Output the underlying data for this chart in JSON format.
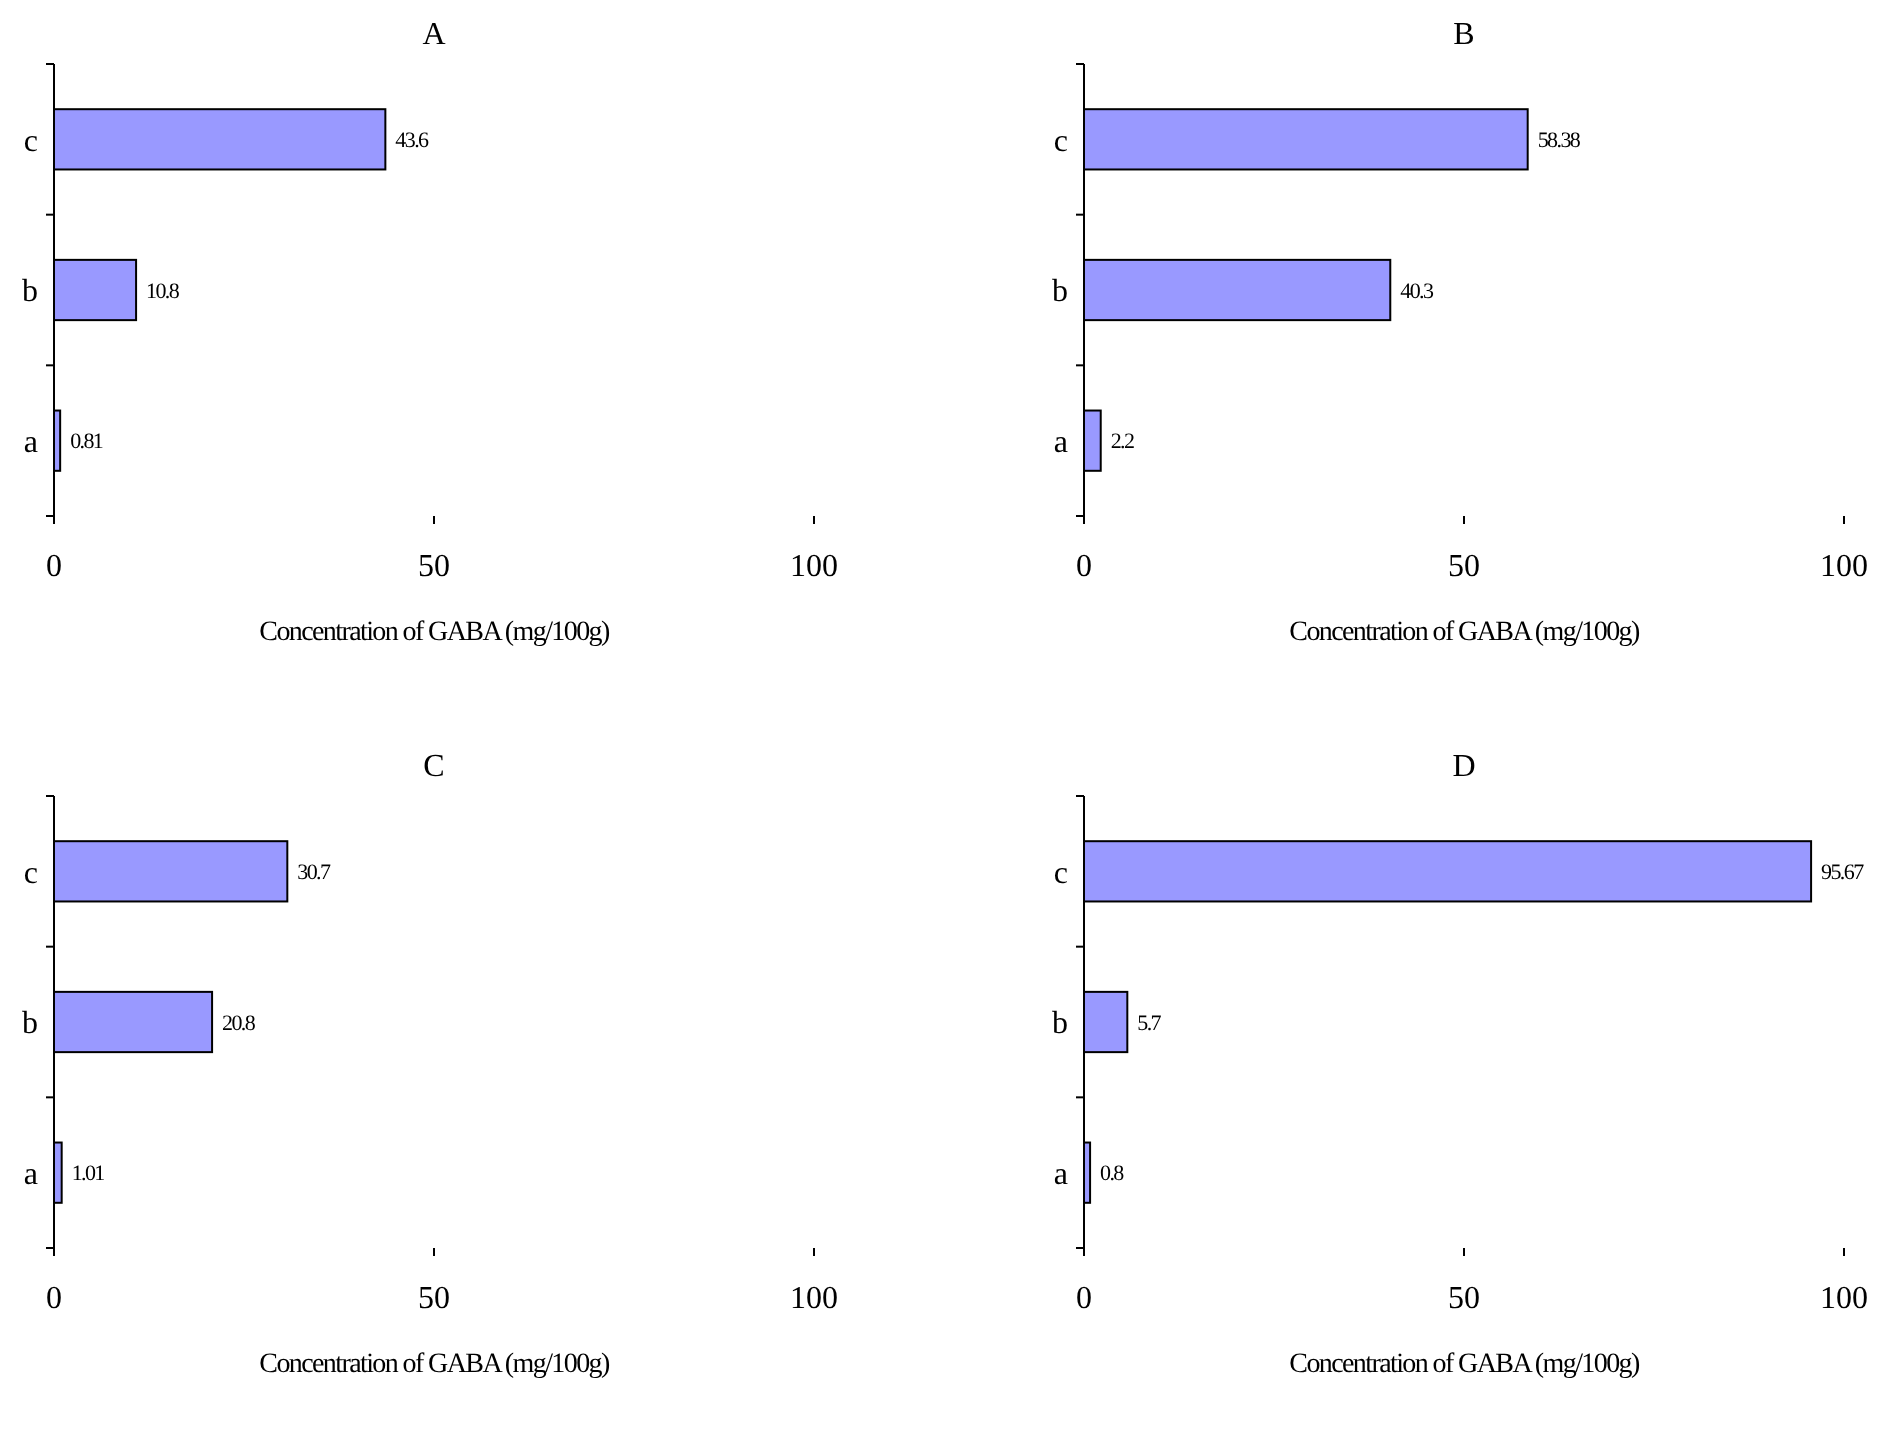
{
  "chart_data": [
    {
      "type": "bar",
      "orientation": "horizontal",
      "title": "A",
      "xlabel": "Concentration of GABA (mg/100g)",
      "categories": [
        "c",
        "b",
        "a"
      ],
      "values": [
        43.6,
        10.8,
        0.81
      ],
      "color": "#9999ff",
      "xlim": [
        0,
        100
      ],
      "xticks": [
        0,
        50,
        100
      ],
      "data_labels": true
    },
    {
      "type": "bar",
      "orientation": "horizontal",
      "title": "B",
      "xlabel": "Concentration of GABA (mg/100g)",
      "categories": [
        "c",
        "b",
        "a"
      ],
      "values": [
        58.38,
        40.3,
        2.2
      ],
      "color": "#9999ff",
      "xlim": [
        0,
        100
      ],
      "xticks": [
        0,
        50,
        100
      ],
      "data_labels": true
    },
    {
      "type": "bar",
      "orientation": "horizontal",
      "title": "C",
      "xlabel": "Concentration of GABA (mg/100g)",
      "categories": [
        "c",
        "b",
        "a"
      ],
      "values": [
        30.7,
        20.8,
        1.01
      ],
      "color": "#9999ff",
      "xlim": [
        0,
        100
      ],
      "xticks": [
        0,
        50,
        100
      ],
      "data_labels": true
    },
    {
      "type": "bar",
      "orientation": "horizontal",
      "title": "D",
      "xlabel": "Concentration of GABA (mg/100g)",
      "categories": [
        "c",
        "b",
        "a"
      ],
      "values": [
        95.67,
        5.7,
        0.8
      ],
      "color": "#9999ff",
      "xlim": [
        0,
        100
      ],
      "xticks": [
        0,
        50,
        100
      ],
      "data_labels": true
    }
  ]
}
